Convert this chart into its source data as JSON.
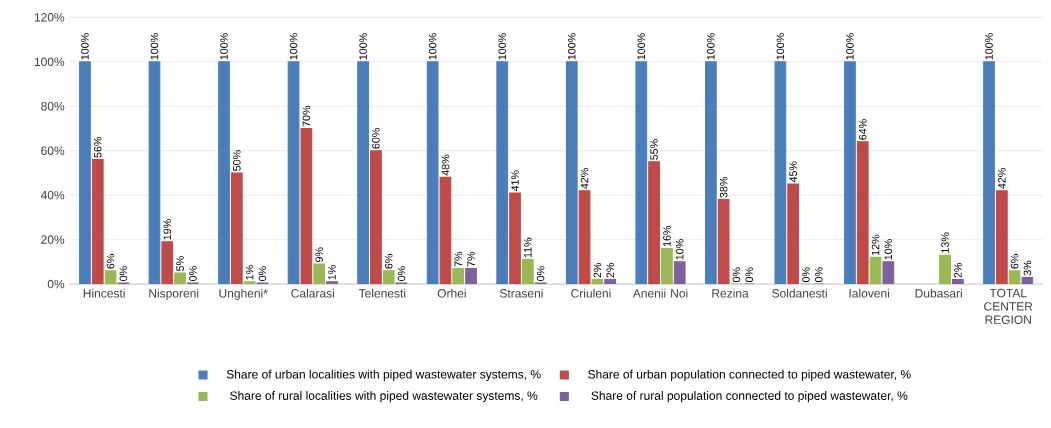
{
  "chart_data": {
    "type": "bar",
    "categories": [
      "Hincesti",
      "Nisporeni",
      "Ungheni*",
      "Calarasi",
      "Telenesti",
      "Orhei",
      "Straseni",
      "Criuleni",
      "Anenii Noi",
      "Rezina",
      "Soldanesti",
      "Ialoveni",
      "Dubasari",
      "TOTAL CENTER REGION"
    ],
    "series": [
      {
        "name": "Share of urban localities with piped wastewater systems, %",
        "color": "#4a7ebb",
        "values": [
          100,
          100,
          100,
          100,
          100,
          100,
          100,
          100,
          100,
          100,
          100,
          100,
          null,
          100
        ],
        "value_labels": [
          "100%",
          "100%",
          "100%",
          "100%",
          "100%",
          "100%",
          "100%",
          "100%",
          "100%",
          "100%",
          "100%",
          "100%",
          null,
          "100%"
        ]
      },
      {
        "name": "Share of urban population connected to piped wastewater, %",
        "color": "#be4b48",
        "values": [
          56,
          19,
          50,
          70,
          60,
          48,
          41,
          42,
          55,
          38,
          45,
          64,
          null,
          42
        ],
        "value_labels": [
          "56%",
          "19%",
          "50%",
          "70%",
          "60%",
          "48%",
          "41%",
          "42%",
          "55%",
          "38%",
          "45%",
          "64%",
          null,
          "42%"
        ]
      },
      {
        "name": "Share of rural localities with piped wastewater systems, %",
        "color": "#98b954",
        "values": [
          6,
          5,
          1,
          9,
          6,
          7,
          11,
          2,
          16,
          0,
          0,
          12,
          13,
          6
        ],
        "value_labels": [
          "6%",
          "5%",
          "1%",
          "9%",
          "6%",
          "7%",
          "11%",
          "2%",
          "16%",
          "0%",
          "0%",
          "12%",
          "13%",
          "6%"
        ]
      },
      {
        "name": "Share of rural population connected to piped wastewater, %",
        "color": "#7d60a0",
        "values": [
          0.5,
          0.5,
          0.5,
          1,
          0.5,
          7,
          0.5,
          2,
          10,
          0,
          0,
          10,
          2,
          3
        ],
        "value_labels": [
          "0%",
          "0%",
          "0%",
          "1%",
          "0%",
          "7%",
          "0%",
          "2%",
          "10%",
          "0%",
          "0%",
          "10%",
          "2%",
          "3%"
        ]
      }
    ],
    "ylim": [
      0,
      120
    ],
    "yticks": [
      {
        "value": 0,
        "label": "0%"
      },
      {
        "value": 20,
        "label": "20%"
      },
      {
        "value": 40,
        "label": "40%"
      },
      {
        "value": 60,
        "label": "60%"
      },
      {
        "value": 80,
        "label": "80%"
      },
      {
        "value": 100,
        "label": "100%"
      },
      {
        "value": 120,
        "label": "120%"
      }
    ],
    "grid": "y",
    "legend": "bottom"
  }
}
